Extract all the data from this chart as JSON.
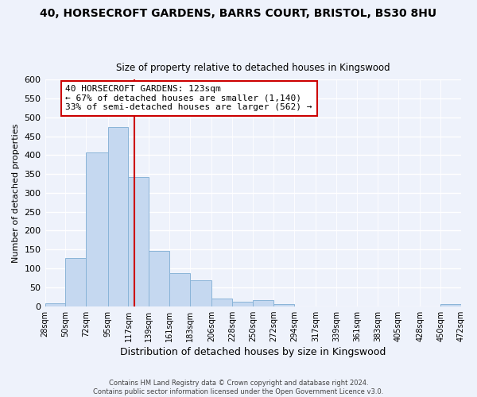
{
  "title": "40, HORSECROFT GARDENS, BARRS COURT, BRISTOL, BS30 8HU",
  "subtitle": "Size of property relative to detached houses in Kingswood",
  "xlabel": "Distribution of detached houses by size in Kingswood",
  "ylabel": "Number of detached properties",
  "bar_edges": [
    28,
    50,
    72,
    95,
    117,
    139,
    161,
    183,
    206,
    228,
    250,
    272,
    294,
    317,
    339,
    361,
    383,
    405,
    428,
    450,
    472
  ],
  "bar_heights": [
    8,
    128,
    406,
    474,
    341,
    146,
    87,
    68,
    21,
    12,
    16,
    5,
    0,
    0,
    0,
    0,
    0,
    0,
    0,
    5
  ],
  "bar_color": "#c5d8f0",
  "bar_edge_color": "#8ab4d8",
  "vline_x": 123,
  "vline_color": "#cc0000",
  "annotation_text": "40 HORSECROFT GARDENS: 123sqm\n← 67% of detached houses are smaller (1,140)\n33% of semi-detached houses are larger (562) →",
  "annotation_box_color": "#ffffff",
  "annotation_box_edge": "#cc0000",
  "ylim": [
    0,
    600
  ],
  "yticks": [
    0,
    50,
    100,
    150,
    200,
    250,
    300,
    350,
    400,
    450,
    500,
    550,
    600
  ],
  "tick_labels": [
    "28sqm",
    "50sqm",
    "72sqm",
    "95sqm",
    "117sqm",
    "139sqm",
    "161sqm",
    "183sqm",
    "206sqm",
    "228sqm",
    "250sqm",
    "272sqm",
    "294sqm",
    "317sqm",
    "339sqm",
    "361sqm",
    "383sqm",
    "405sqm",
    "428sqm",
    "450sqm",
    "472sqm"
  ],
  "footer_text": "Contains HM Land Registry data © Crown copyright and database right 2024.\nContains public sector information licensed under the Open Government Licence v3.0.",
  "bg_color": "#eef2fb"
}
